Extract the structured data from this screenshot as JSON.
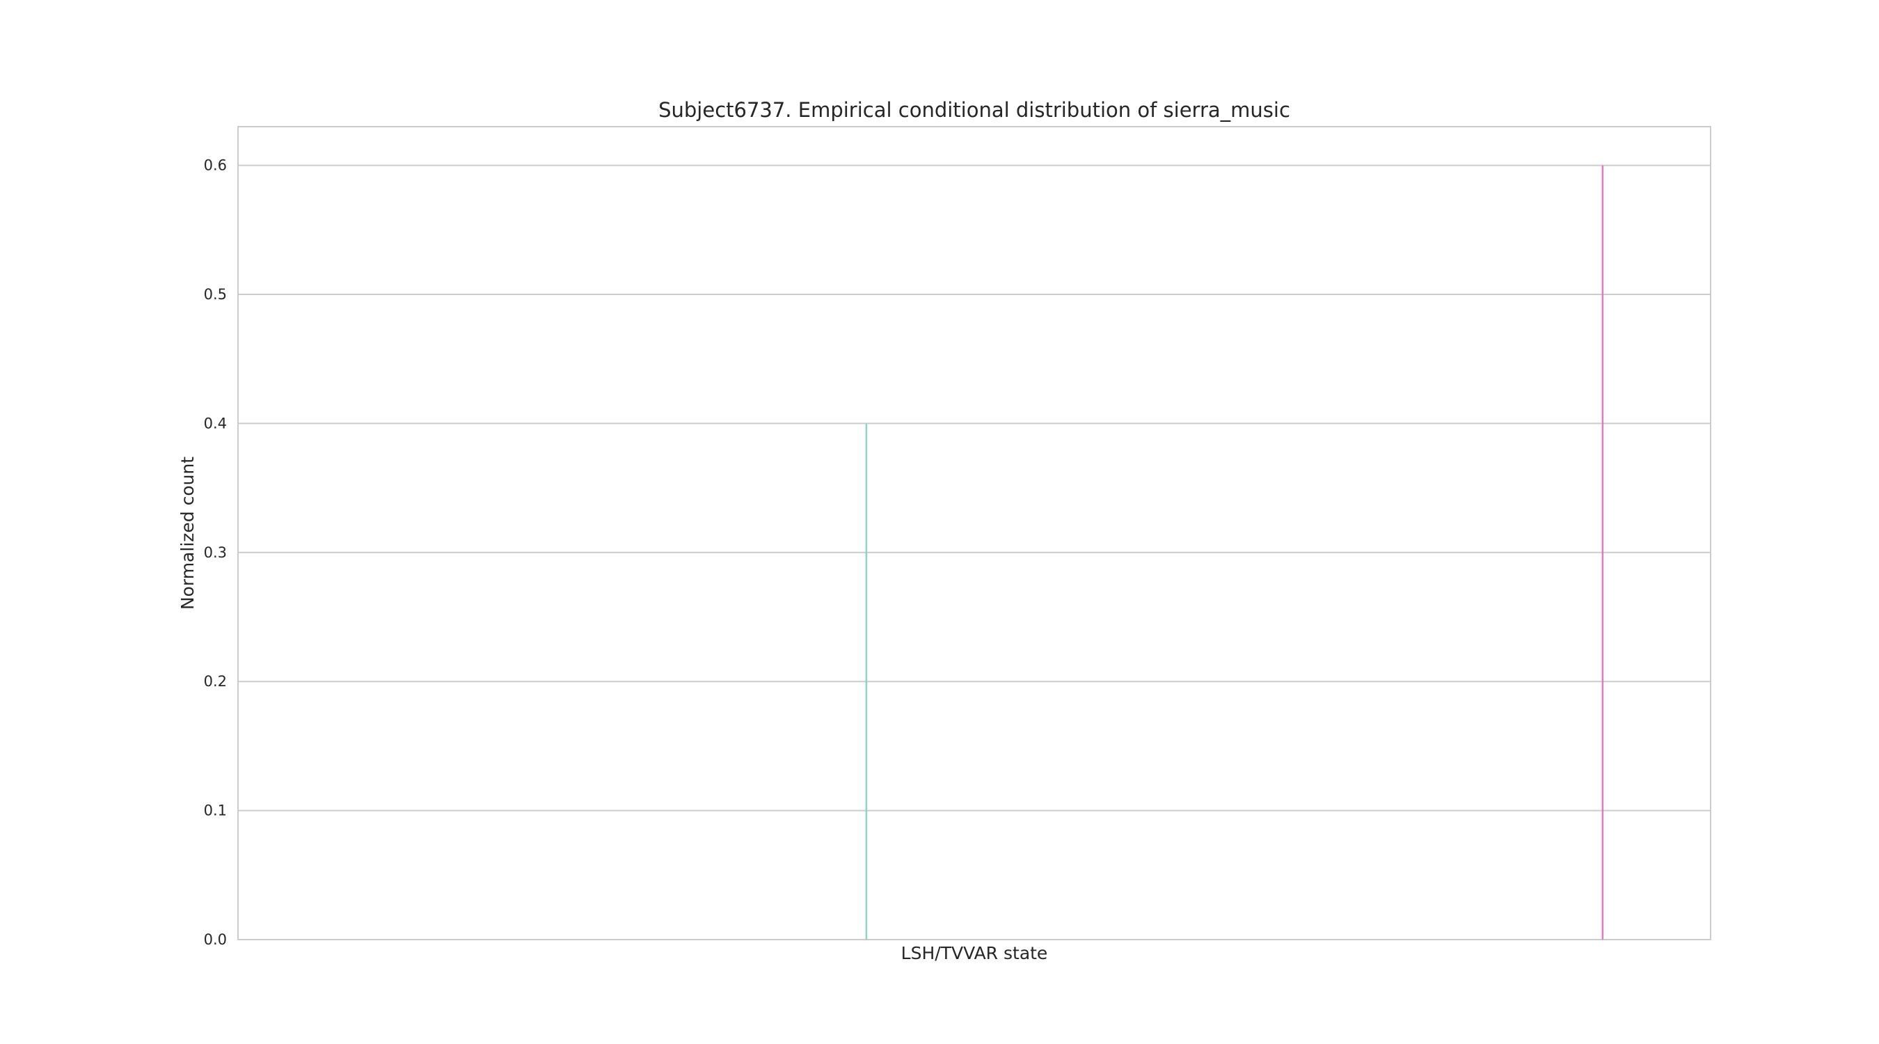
{
  "chart_data": {
    "type": "bar",
    "title": "Subject6737. Empirical conditional distribution of sierra_music",
    "xlabel": "LSH/TVVAR state",
    "ylabel": "Normalized count",
    "ylim": [
      0,
      0.63
    ],
    "yticks": [
      0.0,
      0.1,
      0.2,
      0.3,
      0.4,
      0.5,
      0.6
    ],
    "ytick_labels": [
      "0.0",
      "0.1",
      "0.2",
      "0.3",
      "0.4",
      "0.5",
      "0.6"
    ],
    "grid": true,
    "legend": "none",
    "x_range": [
      0,
      1
    ],
    "bars": [
      {
        "x": 0.4267,
        "value": 0.4,
        "color": "#8dd3c7"
      },
      {
        "x": 0.9267,
        "value": 0.6,
        "color": "#e377c2"
      }
    ]
  },
  "colors": {
    "grid": "#cccccc",
    "frame": "#cccccc",
    "text": "#262626"
  }
}
